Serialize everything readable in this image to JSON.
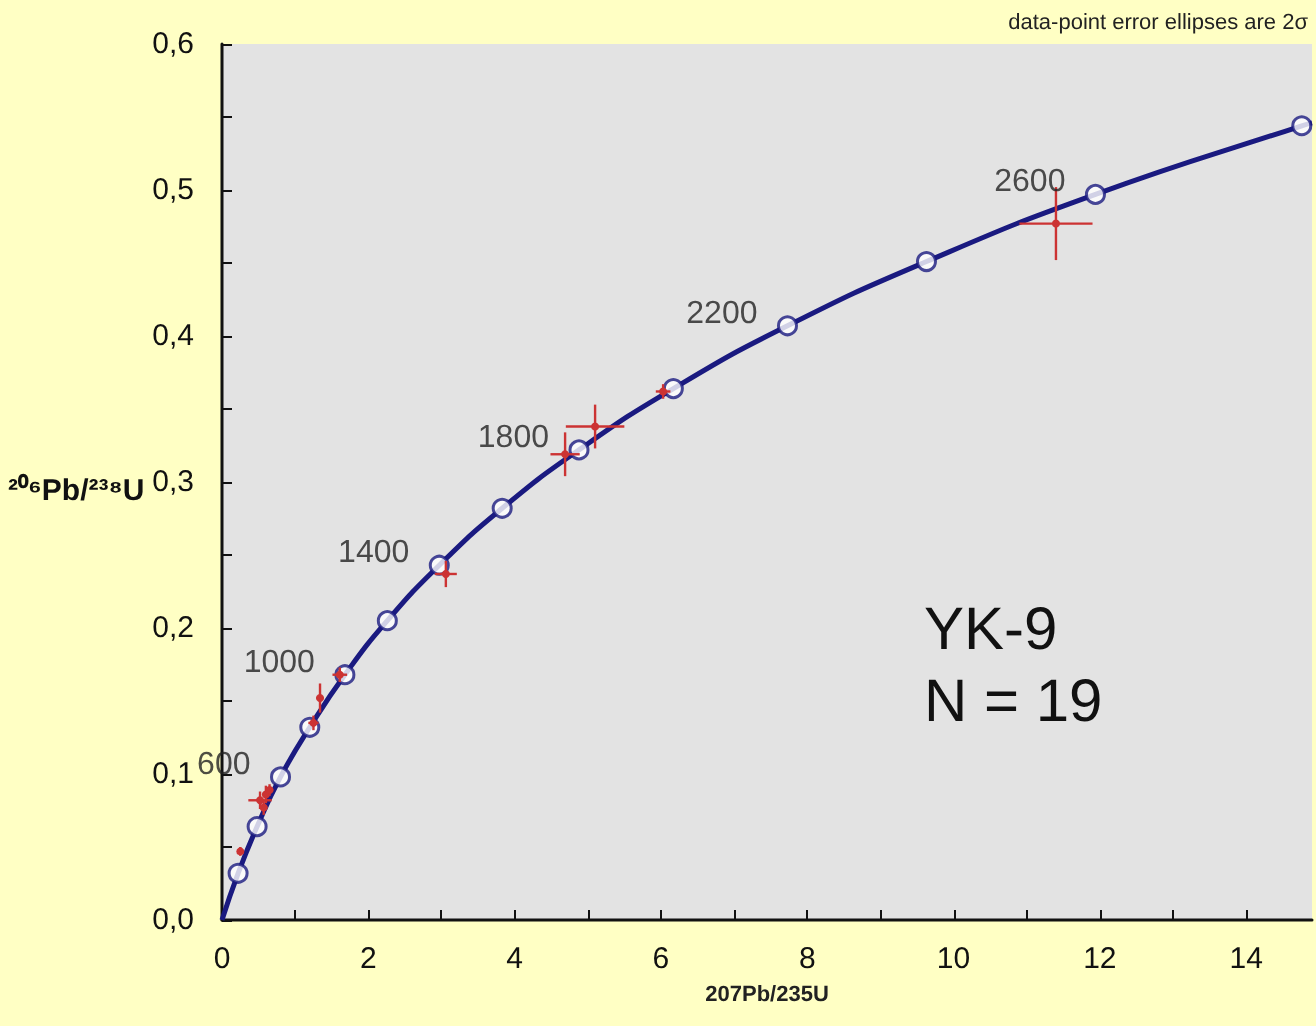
{
  "chart_data": {
    "type": "scatter",
    "xlabel": "207Pb/235U",
    "ylabel": "²⁰⁶Pb/²³⁸U",
    "xlim": [
      0,
      14.9
    ],
    "ylim": [
      0,
      0.6
    ],
    "xticks": [
      0,
      {
        "value": 1,
        "label": null
      },
      2,
      {
        "value": 3,
        "label": null
      },
      4,
      {
        "value": 5,
        "label": null
      },
      6,
      {
        "value": 7,
        "label": null
      },
      8,
      {
        "value": 9,
        "label": null
      },
      10,
      {
        "value": 11,
        "label": null
      },
      12,
      {
        "value": 13,
        "label": null
      },
      14
    ],
    "yticks": [
      {
        "value": 0,
        "label": "0,0"
      },
      {
        "value": 0.05,
        "label": null
      },
      {
        "value": 0.1,
        "label": "0,1"
      },
      {
        "value": 0.15,
        "label": null
      },
      {
        "value": 0.2,
        "label": "0,2"
      },
      {
        "value": 0.25,
        "label": null
      },
      {
        "value": 0.3,
        "label": "0,3"
      },
      {
        "value": 0.35,
        "label": null
      },
      {
        "value": 0.4,
        "label": "0,4"
      },
      {
        "value": 0.45,
        "label": null
      },
      {
        "value": 0.5,
        "label": "0,5"
      },
      {
        "value": 0.55,
        "label": null
      },
      {
        "value": 0.6,
        "label": "0,6"
      }
    ],
    "grid": false,
    "legend": false,
    "series": [
      {
        "type": "line",
        "color": "#1a1a80",
        "marker": "none",
        "line_style": "solid",
        "x": [
          0,
          0.22,
          0.48,
          0.8,
          1.2,
          1.68,
          2.26,
          2.97,
          3.83,
          4.88,
          6.17,
          7.73,
          9.63,
          11.94,
          14.76,
          14.9
        ],
        "values": [
          0,
          0.032,
          0.064,
          0.098,
          0.132,
          0.168,
          0.205,
          0.243,
          0.282,
          0.322,
          0.364,
          0.407,
          0.451,
          0.497,
          0.544,
          0.546
        ]
      },
      {
        "type": "scatter",
        "color": "#1a1a80",
        "marker": "circle",
        "x": [
          0.22,
          0.48,
          0.8,
          1.2,
          1.68,
          2.26,
          2.97,
          3.83,
          4.88,
          6.17,
          7.73,
          9.63,
          11.94,
          14.76
        ],
        "values": [
          0.032,
          0.064,
          0.098,
          0.132,
          0.168,
          0.205,
          0.243,
          0.282,
          0.322,
          0.364,
          0.407,
          0.451,
          0.497,
          0.544
        ]
      },
      {
        "color": "#cc3333",
        "marker": "circle",
        "x": [
          0.25,
          0.52,
          0.6,
          0.57,
          0.65,
          1.25,
          1.34,
          1.61,
          3.06,
          4.69,
          5.1,
          6.03,
          11.4
        ],
        "values": [
          0.047,
          0.082,
          0.086,
          0.077,
          0.089,
          0.135,
          0.152,
          0.168,
          0.237,
          0.319,
          0.338,
          0.362,
          0.477
        ],
        "xerrors": [
          0.03,
          0.16,
          0.05,
          0.05,
          0.05,
          0.07,
          0.05,
          0.1,
          0.15,
          0.2,
          0.4,
          0.1,
          0.5
        ],
        "errors": [
          0.003,
          0.006,
          0.006,
          0.005,
          0.004,
          0.005,
          0.01,
          0.005,
          0.009,
          0.015,
          0.015,
          0.005,
          0.025
        ]
      }
    ],
    "annotations": [
      "data-point error ellipses are 2σ",
      "YK-9",
      "N = 19",
      {
        "text": "600",
        "x": 0.8,
        "y": 0.098
      },
      {
        "text": "1000",
        "x": 1.68,
        "y": 0.168
      },
      {
        "text": "1400",
        "x": 2.97,
        "y": 0.243
      },
      {
        "text": "1800",
        "x": 4.88,
        "y": 0.322
      },
      {
        "text": "2200",
        "x": 7.73,
        "y": 0.407
      },
      {
        "text": "2600",
        "x": 11.94,
        "y": 0.497
      }
    ]
  }
}
